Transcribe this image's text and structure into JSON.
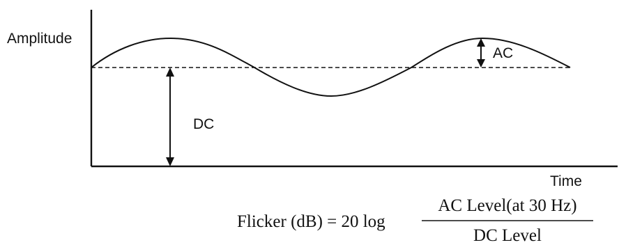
{
  "labels": {
    "y_axis": "Amplitude",
    "x_axis": "Time",
    "ac": "AC",
    "dc": "DC"
  },
  "formula": {
    "lhs": "Flicker (dB) = 20 log",
    "numerator": "AC  Level(at 30 Hz)",
    "denominator": "DC  Level"
  }
}
